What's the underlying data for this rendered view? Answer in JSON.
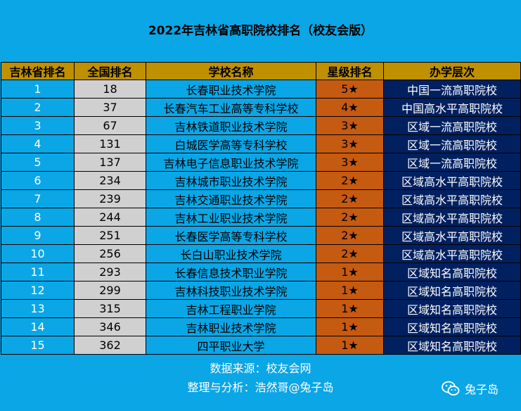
{
  "title": "2022年吉林省高职院校排名（校友会版）",
  "table": {
    "headers": [
      "吉林省排名",
      "全国排名",
      "学校名称",
      "星级排名",
      "办学层次"
    ],
    "rows": [
      [
        "1",
        "18",
        "长春职业技术学院",
        "5★",
        "中国一流高职院校"
      ],
      [
        "2",
        "37",
        "长春汽车工业高等专科学校",
        "4★",
        "中国高水平高职院校"
      ],
      [
        "3",
        "67",
        "吉林铁道职业技术学院",
        "3★",
        "区域一流高职院校"
      ],
      [
        "4",
        "131",
        "白城医学高等专科学校",
        "3★",
        "区域一流高职院校"
      ],
      [
        "5",
        "137",
        "吉林电子信息职业技术学院",
        "3★",
        "区域一流高职院校"
      ],
      [
        "6",
        "234",
        "吉林城市职业技术学院",
        "2★",
        "区域高水平高职院校"
      ],
      [
        "7",
        "239",
        "吉林交通职业技术学院",
        "2★",
        "区域高水平高职院校"
      ],
      [
        "8",
        "244",
        "吉林工业职业技术学院",
        "2★",
        "区域高水平高职院校"
      ],
      [
        "9",
        "251",
        "长春医学高等专科学校",
        "2★",
        "区域高水平高职院校"
      ],
      [
        "10",
        "256",
        "长白山职业技术学院",
        "2★",
        "区域高水平高职院校"
      ],
      [
        "11",
        "293",
        "长春信息技术职业学院",
        "1★",
        "区域知名高职院校"
      ],
      [
        "12",
        "299",
        "吉林科技职业技术学院",
        "1★",
        "区域知名高职院校"
      ],
      [
        "13",
        "315",
        "吉林工程职业学院",
        "1★",
        "区域知名高职院校"
      ],
      [
        "14",
        "346",
        "吉林职业技术学院",
        "1★",
        "区域知名高职院校"
      ],
      [
        "15",
        "362",
        "四平职业大学",
        "1★",
        "区域知名高职院校"
      ]
    ]
  },
  "footer": {
    "source": "数据来源：校友会网",
    "analysis": "整理与分析：浩然哥@兔子岛"
  },
  "watermark": {
    "icon": "wechat-icon",
    "text": "兔子岛"
  },
  "colors": {
    "background": "#0aa6e6",
    "header": "#bf9000",
    "national_rank": "#d0d0d0",
    "stars": "#c55a11",
    "level": "#002060"
  }
}
